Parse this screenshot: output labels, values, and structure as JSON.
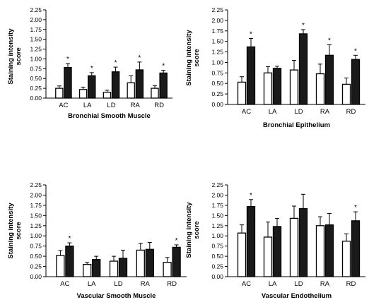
{
  "chart_data": [
    {
      "type": "bar",
      "title": "",
      "xlabel": "Bronchial Smooth Muscle",
      "ylabel": "Staining intensity score",
      "ylim": [
        0,
        2.25
      ],
      "yticks": [
        "0.00",
        "0.25",
        "0.50",
        "0.75",
        "1.00",
        "1.25",
        "1.50",
        "1.75",
        "2.00",
        "2.25"
      ],
      "categories": [
        "AC",
        "LA",
        "LD",
        "RA",
        "RD"
      ],
      "series": [
        {
          "fill": "#ffffff",
          "values": [
            0.25,
            0.22,
            0.15,
            0.39,
            0.25
          ],
          "errors": [
            0.06,
            0.06,
            0.05,
            0.18,
            0.07
          ]
        },
        {
          "fill": "#1a1a1a",
          "values": [
            0.78,
            0.57,
            0.67,
            0.72,
            0.64
          ],
          "errors": [
            0.1,
            0.08,
            0.12,
            0.2,
            0.07
          ]
        }
      ],
      "significance": [
        "*",
        "*",
        "*",
        "*",
        "*"
      ]
    },
    {
      "type": "bar",
      "title": "",
      "xlabel": "Bronchial  Epithelium",
      "ylabel": "Staining intensity score",
      "ylim": [
        0,
        2.25
      ],
      "yticks": [
        "0.00",
        "0.25",
        "0.50",
        "0.75",
        "1.00",
        "1.25",
        "1.50",
        "1.75",
        "2.00",
        "2.25"
      ],
      "categories": [
        "AC",
        "LA",
        "LD",
        "RA",
        "RD"
      ],
      "series": [
        {
          "fill": "#ffffff",
          "values": [
            0.53,
            0.75,
            0.82,
            0.73,
            0.48
          ],
          "errors": [
            0.13,
            0.15,
            0.23,
            0.23,
            0.15
          ]
        },
        {
          "fill": "#1a1a1a",
          "values": [
            1.37,
            0.86,
            1.68,
            1.17,
            1.07
          ],
          "errors": [
            0.2,
            0.05,
            0.1,
            0.25,
            0.1
          ]
        }
      ],
      "significance": [
        "*",
        "",
        "*",
        "*",
        "*"
      ]
    },
    {
      "type": "bar",
      "title": "",
      "xlabel": "Vascular Smooth Muscle",
      "ylabel": "Staining intensity score",
      "ylim": [
        0,
        2.25
      ],
      "yticks": [
        "0.00",
        "0.25",
        "0.50",
        "0.75",
        "1.00",
        "1.25",
        "1.50",
        "1.75",
        "2.00",
        "2.25"
      ],
      "categories": [
        "AC",
        "LA",
        "LD",
        "RA",
        "RD"
      ],
      "series": [
        {
          "fill": "#ffffff",
          "values": [
            0.52,
            0.3,
            0.38,
            0.65,
            0.35
          ],
          "errors": [
            0.12,
            0.05,
            0.12,
            0.17,
            0.12
          ]
        },
        {
          "fill": "#1a1a1a",
          "values": [
            0.75,
            0.42,
            0.45,
            0.67,
            0.72
          ],
          "errors": [
            0.08,
            0.08,
            0.2,
            0.17,
            0.06
          ]
        }
      ],
      "significance": [
        "*",
        "",
        "",
        "",
        "*"
      ]
    },
    {
      "type": "bar",
      "title": "",
      "xlabel": "Vascular Endothelium",
      "ylabel": "Staining intensity score",
      "ylim": [
        0,
        2.25
      ],
      "yticks": [
        "0.00",
        "0.25",
        "0.50",
        "0.75",
        "1.00",
        "1.25",
        "1.50",
        "1.75",
        "2.00",
        "2.25"
      ],
      "categories": [
        "AC",
        "LA",
        "LD",
        "RA",
        "RD"
      ],
      "series": [
        {
          "fill": "#ffffff",
          "values": [
            1.07,
            0.97,
            1.43,
            1.25,
            0.87
          ],
          "errors": [
            0.2,
            0.37,
            0.3,
            0.22,
            0.18
          ]
        },
        {
          "fill": "#1a1a1a",
          "values": [
            1.72,
            1.23,
            1.67,
            1.27,
            1.37
          ],
          "errors": [
            0.17,
            0.2,
            0.35,
            0.28,
            0.22
          ]
        }
      ],
      "significance": [
        "*",
        "",
        "",
        "",
        "*"
      ]
    }
  ]
}
